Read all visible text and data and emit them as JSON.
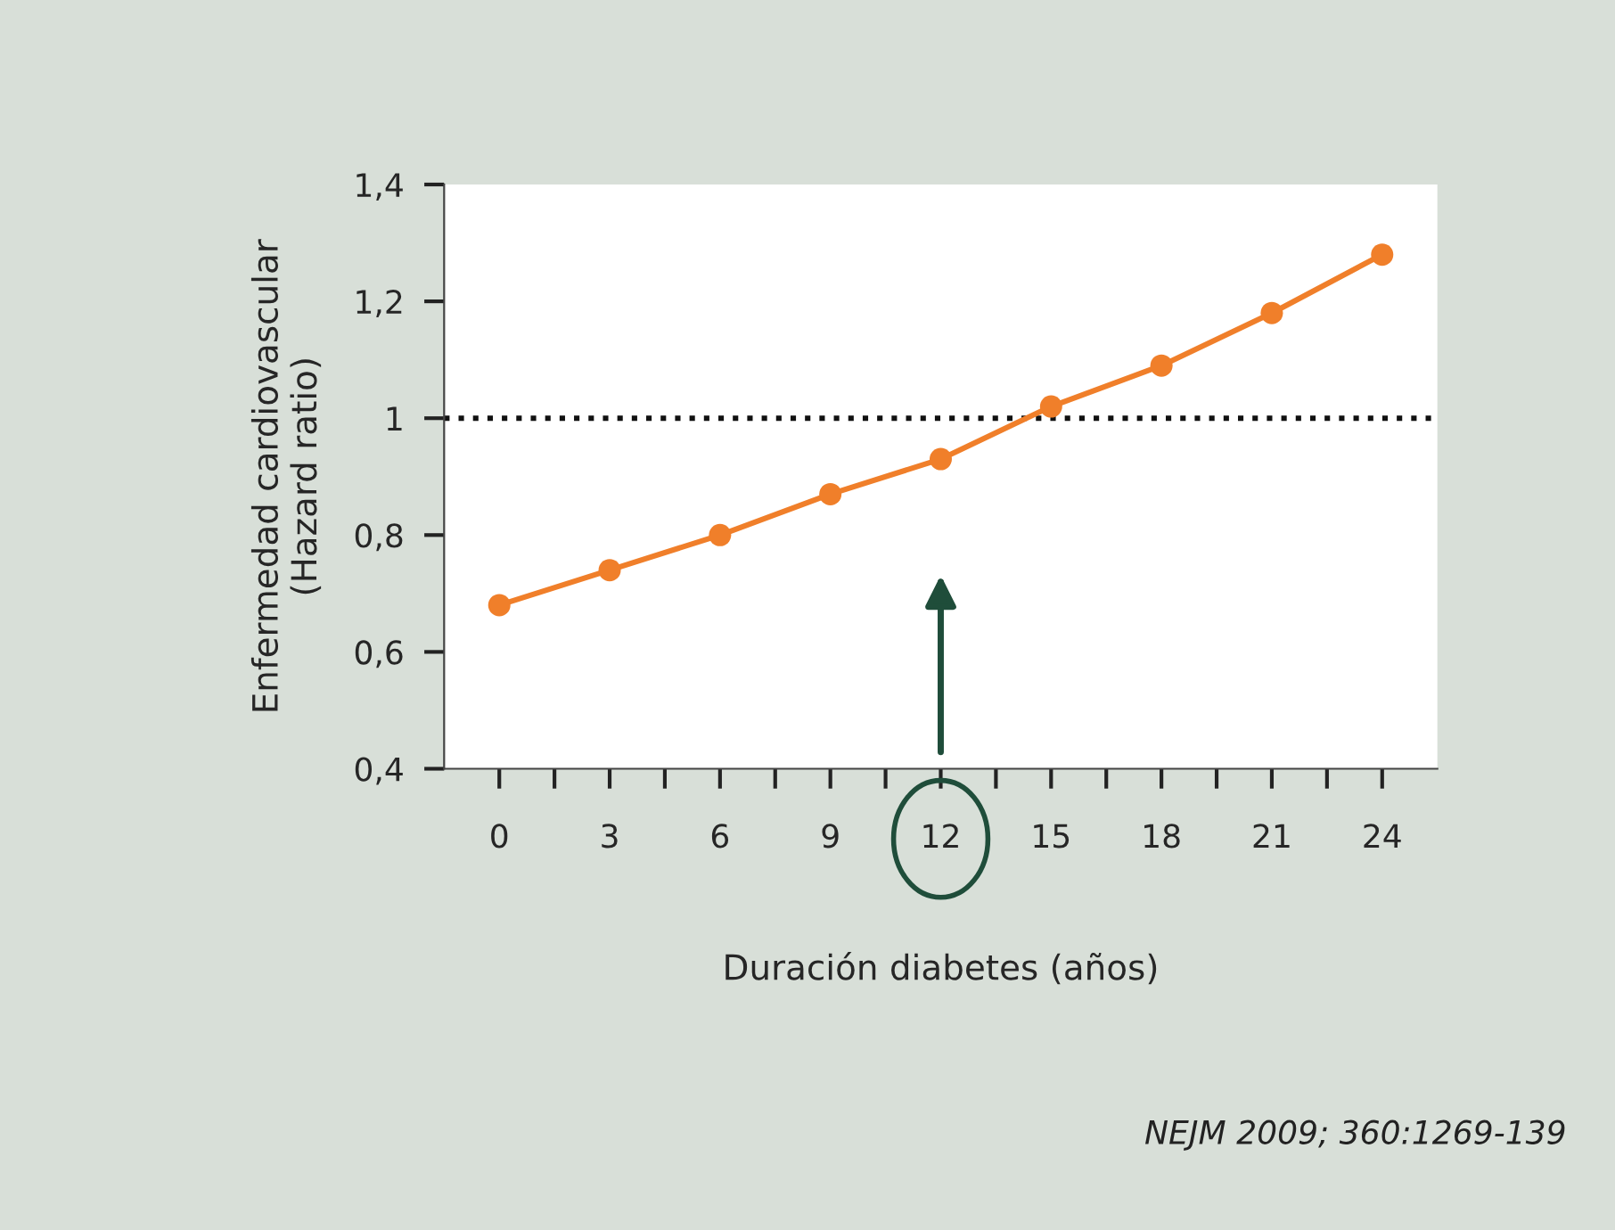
{
  "chart_data": {
    "type": "line",
    "xlabel": "Duración diabetes (años)",
    "ylabel": "Enfermedad cardiovascular\n(Hazard ratio)",
    "x": [
      0,
      3,
      6,
      9,
      12,
      15,
      18,
      21,
      24
    ],
    "series": [
      {
        "color": "#f07f2a",
        "values": [
          0.68,
          0.74,
          0.8,
          0.87,
          0.93,
          1.02,
          1.09,
          1.18,
          1.28
        ]
      }
    ],
    "xlim": [
      -1.5,
      25.5
    ],
    "xticks": [
      0,
      {
        "value": 1.5,
        "label": null
      },
      3,
      {
        "value": 4.5,
        "label": null
      },
      6,
      {
        "value": 7.5,
        "label": null
      },
      9,
      {
        "value": 10.5,
        "label": null
      },
      12,
      {
        "value": 13.5,
        "label": null
      },
      15,
      {
        "value": 16.5,
        "label": null
      },
      18,
      {
        "value": 19.5,
        "label": null
      },
      21,
      {
        "value": 22.5,
        "label": null
      },
      24
    ],
    "ylim": [
      0.4,
      1.4
    ],
    "yticks": [
      {
        "value": 0.4,
        "label": "0,4"
      },
      {
        "value": 0.6,
        "label": "0,6"
      },
      {
        "value": 0.8,
        "label": "0,8"
      },
      1,
      {
        "value": 1.2,
        "label": "1,2"
      },
      {
        "value": 1.4,
        "label": "1,4"
      }
    ],
    "ref_lines": [
      {
        "axis": "y",
        "value": 1,
        "color": "#111111",
        "line_style": "dotted"
      }
    ],
    "marker": "circle",
    "line_style": "solid",
    "grid": false,
    "legend": false,
    "annotations": [
      "NEJM 2009; 360:1269-139"
    ]
  }
}
